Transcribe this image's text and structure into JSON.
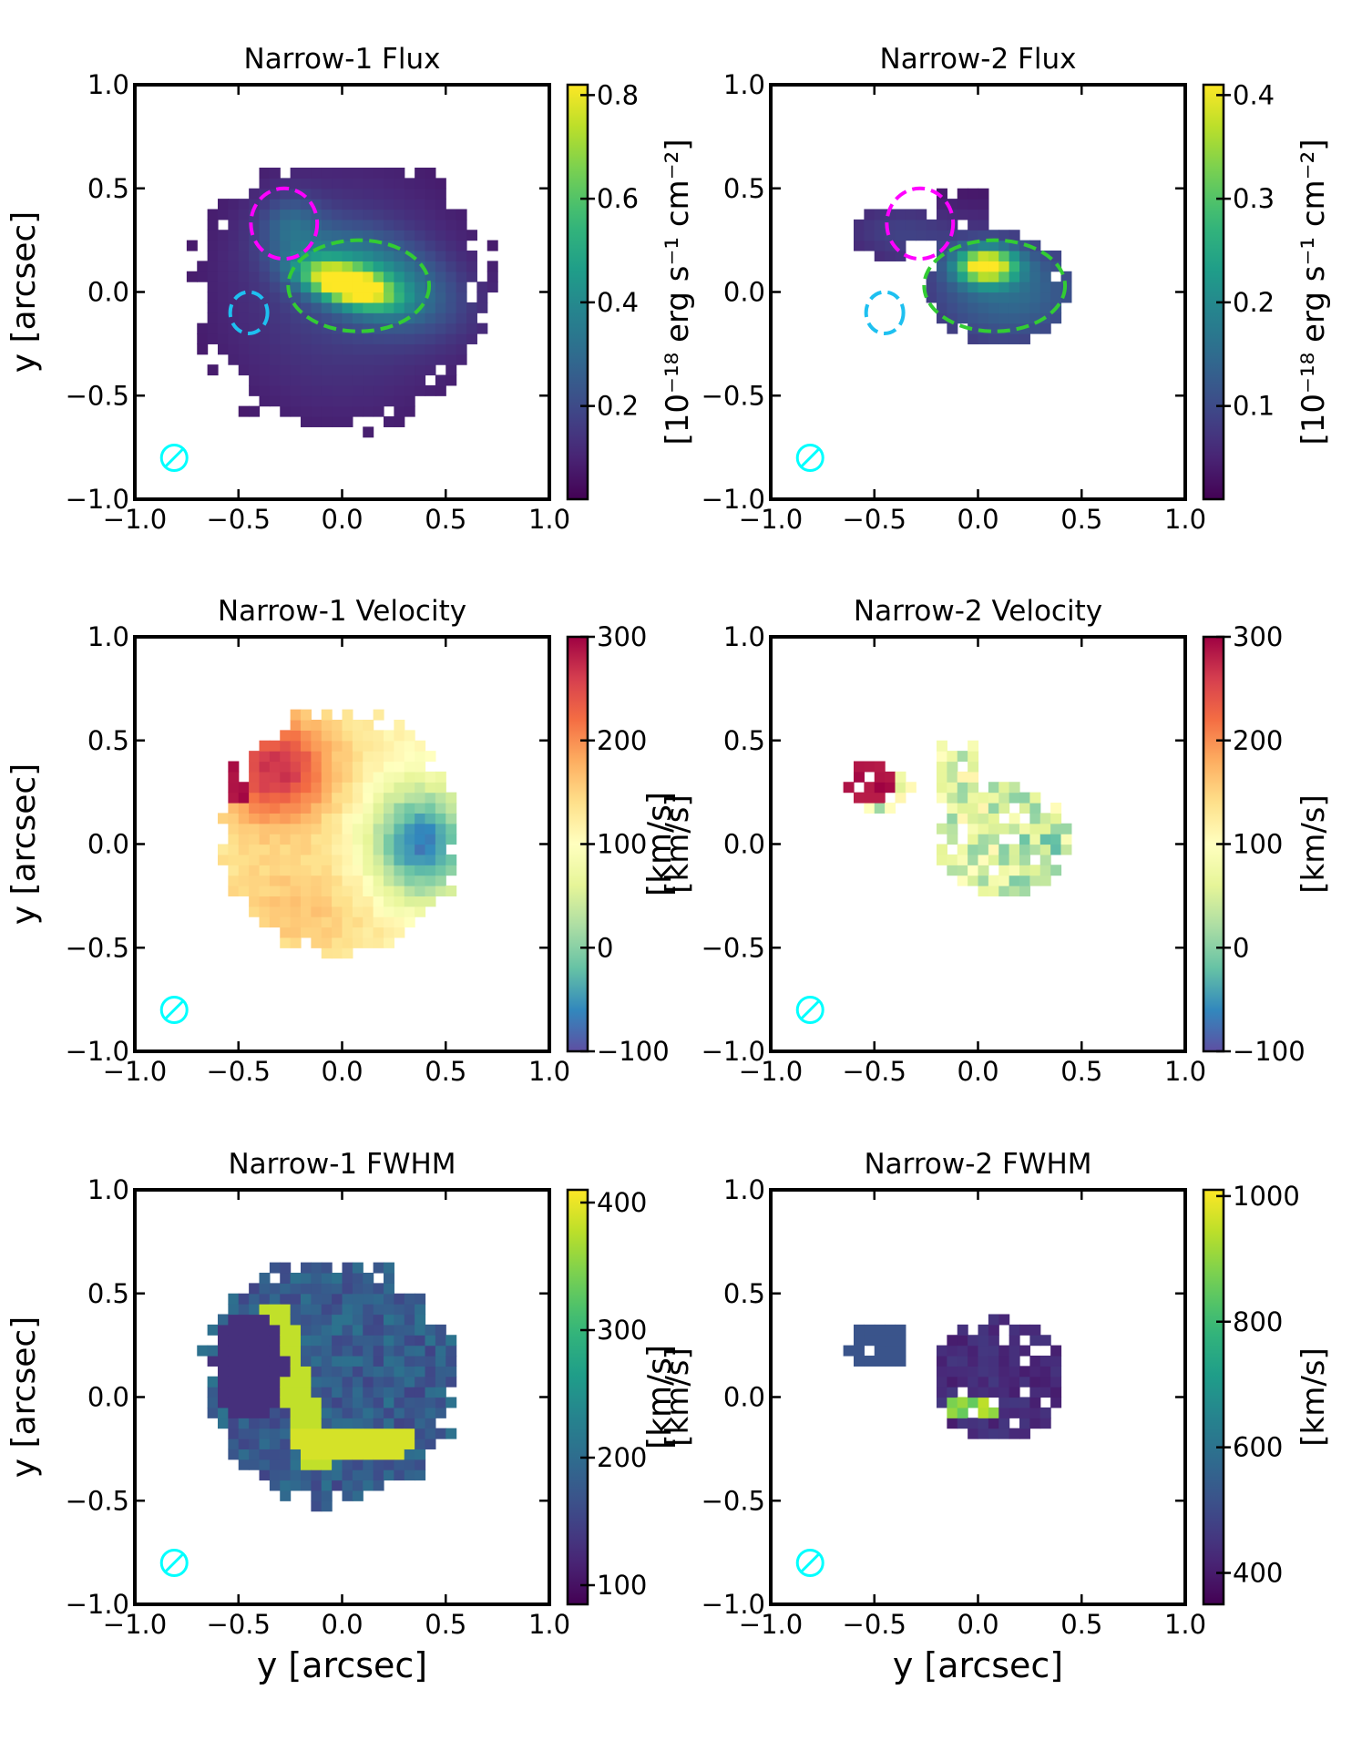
{
  "chart_data": [
    {
      "type": "heatmap",
      "title": "Narrow-1 Flux",
      "ylabel": "y [arcsec]",
      "xlabel": "",
      "xlim": [
        -1.0,
        1.0
      ],
      "ylim": [
        -1.0,
        1.0
      ],
      "xticks": [
        "−1.0",
        "−0.5",
        "0.0",
        "0.5",
        "1.0"
      ],
      "yticks": [
        "1.0",
        "0.5",
        "0.0",
        "−0.5",
        "−1.0"
      ],
      "colormap": "viridis",
      "colorbar": {
        "label": "[10⁻¹⁸ erg s⁻¹ cm⁻²]",
        "range": [
          0.02,
          0.82
        ],
        "ticks": [
          0.2,
          0.4,
          0.6,
          0.8
        ],
        "tick_labels": [
          "0.2",
          "0.4",
          "0.6",
          "0.8"
        ]
      },
      "map": "flux1",
      "contours": [
        {
          "color": "#ff00ff",
          "center": [
            -0.28,
            0.33
          ],
          "radius": [
            0.16,
            0.17
          ]
        },
        {
          "color": "#1ec0f0",
          "center": [
            -0.45,
            -0.1
          ],
          "radius": [
            0.09,
            0.1
          ]
        },
        {
          "color": "#33cc33",
          "center": [
            0.08,
            0.03
          ],
          "radius": [
            0.34,
            0.22
          ]
        }
      ],
      "beam": {
        "center": [
          -0.81,
          -0.8
        ]
      }
    },
    {
      "type": "heatmap",
      "title": "Narrow-2 Flux",
      "ylabel": "",
      "xlabel": "",
      "xlim": [
        -1.0,
        1.0
      ],
      "ylim": [
        -1.0,
        1.0
      ],
      "xticks": [
        "−1.0",
        "−0.5",
        "0.0",
        "0.5",
        "1.0"
      ],
      "yticks": [
        "1.0",
        "0.5",
        "0.0",
        "−0.5",
        "−1.0"
      ],
      "colormap": "viridis",
      "colorbar": {
        "label": "[10⁻¹⁸ erg s⁻¹ cm⁻²]",
        "range": [
          0.01,
          0.41
        ],
        "ticks": [
          0.1,
          0.2,
          0.3,
          0.4
        ],
        "tick_labels": [
          "0.1",
          "0.2",
          "0.3",
          "0.4"
        ]
      },
      "map": "flux2",
      "contours": [
        {
          "color": "#ff00ff",
          "center": [
            -0.28,
            0.33
          ],
          "radius": [
            0.16,
            0.17
          ]
        },
        {
          "color": "#1ec0f0",
          "center": [
            -0.45,
            -0.1
          ],
          "radius": [
            0.09,
            0.1
          ]
        },
        {
          "color": "#33cc33",
          "center": [
            0.08,
            0.03
          ],
          "radius": [
            0.34,
            0.22
          ]
        }
      ],
      "beam": {
        "center": [
          -0.81,
          -0.8
        ]
      }
    },
    {
      "type": "heatmap",
      "title": "Narrow-1 Velocity",
      "ylabel": "y [arcsec]",
      "xlabel": "",
      "xlim": [
        -1.0,
        1.0
      ],
      "ylim": [
        -1.0,
        1.0
      ],
      "xticks": [
        "−1.0",
        "−0.5",
        "0.0",
        "0.5",
        "1.0"
      ],
      "yticks": [
        "1.0",
        "0.5",
        "0.0",
        "−0.5",
        "−1.0"
      ],
      "colormap": "spectral",
      "colorbar": {
        "label": "[km/s]",
        "range": [
          -100,
          300
        ],
        "ticks": [
          -100,
          0,
          100,
          200,
          300
        ],
        "tick_labels": [
          "−100",
          "0",
          "100",
          "200",
          "300"
        ]
      },
      "map": "vel1",
      "contours": [],
      "beam": {
        "center": [
          -0.81,
          -0.8
        ]
      }
    },
    {
      "type": "heatmap",
      "title": "Narrow-2 Velocity",
      "ylabel": "[km/s]",
      "xlabel": "",
      "xlim": [
        -1.0,
        1.0
      ],
      "ylim": [
        -1.0,
        1.0
      ],
      "xticks": [
        "−1.0",
        "−0.5",
        "0.0",
        "0.5",
        "1.0"
      ],
      "yticks": [
        "1.0",
        "0.5",
        "0.0",
        "−0.5",
        "−1.0"
      ],
      "colormap": "spectral",
      "colorbar": {
        "label": "[km/s]",
        "range": [
          -100,
          300
        ],
        "ticks": [
          -100,
          0,
          100,
          200,
          300
        ],
        "tick_labels": [
          "−100",
          "0",
          "100",
          "200",
          "300"
        ]
      },
      "map": "vel2",
      "contours": [],
      "beam": {
        "center": [
          -0.81,
          -0.8
        ]
      }
    },
    {
      "type": "heatmap",
      "title": "Narrow-1 FWHM",
      "ylabel": "y [arcsec]",
      "xlabel": "y [arcsec]",
      "xlim": [
        -1.0,
        1.0
      ],
      "ylim": [
        -1.0,
        1.0
      ],
      "xticks": [
        "−1.0",
        "−0.5",
        "0.0",
        "0.5",
        "1.0"
      ],
      "yticks": [
        "1.0",
        "0.5",
        "0.0",
        "−0.5",
        "−1.0"
      ],
      "colormap": "viridis",
      "colorbar": {
        "label": "[km/s]",
        "range": [
          85,
          410
        ],
        "ticks": [
          100,
          200,
          300,
          400
        ],
        "tick_labels": [
          "100",
          "200",
          "300",
          "400"
        ]
      },
      "map": "fwhm1",
      "contours": [],
      "beam": {
        "center": [
          -0.81,
          -0.8
        ]
      }
    },
    {
      "type": "heatmap",
      "title": "Narrow-2 FWHM",
      "ylabel": "[km/s]",
      "xlabel": "y [arcsec]",
      "xlim": [
        -1.0,
        1.0
      ],
      "ylim": [
        -1.0,
        1.0
      ],
      "xticks": [
        "−1.0",
        "−0.5",
        "0.0",
        "0.5",
        "1.0"
      ],
      "yticks": [
        "1.0",
        "0.5",
        "0.0",
        "−0.5",
        "−1.0"
      ],
      "colormap": "viridis",
      "colorbar": {
        "label": "[km/s]",
        "range": [
          350,
          1010
        ],
        "ticks": [
          400,
          600,
          800,
          1000
        ],
        "tick_labels": [
          "400",
          "600",
          "800",
          "1000"
        ]
      },
      "map": "fwhm2",
      "contours": [],
      "beam": {
        "center": [
          -0.81,
          -0.8
        ]
      }
    }
  ]
}
